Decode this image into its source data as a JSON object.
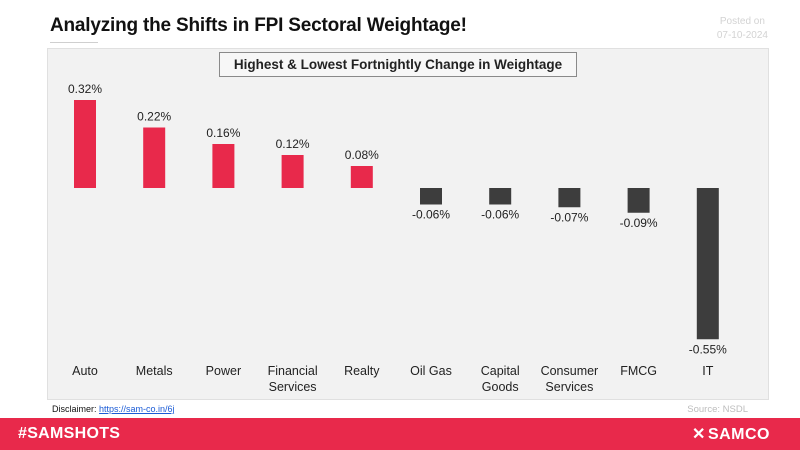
{
  "header": {
    "title": "Analyzing the Shifts in FPI Sectoral Weightage!",
    "posted_label": "Posted on",
    "posted_date": "07-10-2024"
  },
  "chart_data": {
    "type": "bar",
    "title": "Highest & Lowest Fortnightly Change in Weightage",
    "categories": [
      "Auto",
      "Metals",
      "Power",
      "Financial Services",
      "Realty",
      "Oil Gas",
      "Capital Goods",
      "Consumer Services",
      "FMCG",
      "IT"
    ],
    "category_lines": [
      [
        "Auto"
      ],
      [
        "Metals"
      ],
      [
        "Power"
      ],
      [
        "Financial",
        "Services"
      ],
      [
        "Realty"
      ],
      [
        "Oil Gas"
      ],
      [
        "Capital",
        "Goods"
      ],
      [
        "Consumer",
        "Services"
      ],
      [
        "FMCG"
      ],
      [
        "IT"
      ]
    ],
    "values": [
      0.32,
      0.22,
      0.16,
      0.12,
      0.08,
      -0.06,
      -0.06,
      -0.07,
      -0.09,
      -0.55
    ],
    "labels": [
      "0.32%",
      "0.22%",
      "0.16%",
      "0.12%",
      "0.08%",
      "-0.06%",
      "-0.06%",
      "-0.07%",
      "-0.09%",
      "-0.55%"
    ],
    "positive_color": "#e8294b",
    "negative_color": "#3d3d3d",
    "xlabel": "",
    "ylabel": "",
    "grid": false,
    "legend": "none"
  },
  "footer": {
    "disclaimer_label": "Disclaimer:",
    "disclaimer_link": "https://sam-co.in/6j",
    "source": "Source: NSDL",
    "hashtag": "#SAMSHOTS",
    "brand": "SAMCO",
    "brand_icon": "samco-logo-icon"
  }
}
